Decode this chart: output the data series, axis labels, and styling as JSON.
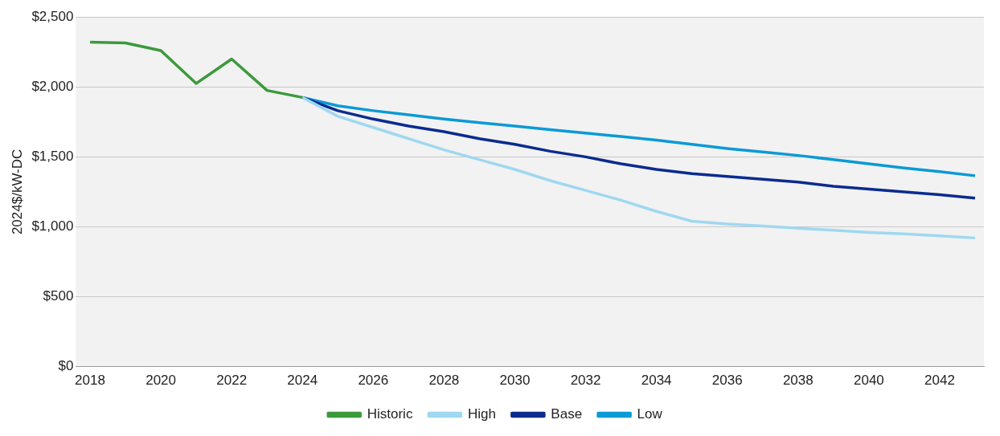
{
  "chart_data": {
    "type": "line",
    "ylabel": "2024$/kW-DC",
    "xlim": [
      2017.6,
      2043.25
    ],
    "xticks": [
      2018,
      2020,
      2022,
      2024,
      2026,
      2028,
      2030,
      2032,
      2034,
      2036,
      2038,
      2040,
      2042
    ],
    "ylim": [
      0,
      2500
    ],
    "yticks": [
      {
        "value": 0,
        "label": "$0"
      },
      {
        "value": 500,
        "label": "$500"
      },
      {
        "value": 1000,
        "label": "$1,000"
      },
      {
        "value": 1500,
        "label": "$1,500"
      },
      {
        "value": 2000,
        "label": "$2,000"
      },
      {
        "value": 2500,
        "label": "$2,500"
      }
    ],
    "grid": "y",
    "legend": "bottom",
    "series": [
      {
        "name": "Historic",
        "color": "#3b9a3b",
        "x": [
          2018,
          2019,
          2020,
          2021,
          2022,
          2023,
          2024
        ],
        "values": [
          2320,
          2315,
          2260,
          2025,
          2200,
          1975,
          1925
        ]
      },
      {
        "name": "High",
        "color": "#9fd8f0",
        "x": [
          2024,
          2025,
          2026,
          2027,
          2028,
          2029,
          2030,
          2031,
          2032,
          2033,
          2034,
          2035,
          2036,
          2037,
          2038,
          2039,
          2040,
          2041,
          2042,
          2043
        ],
        "values": [
          1925,
          1790,
          1710,
          1630,
          1550,
          1480,
          1410,
          1330,
          1260,
          1190,
          1110,
          1040,
          1020,
          1005,
          990,
          975,
          960,
          950,
          935,
          920
        ]
      },
      {
        "name": "Base",
        "color": "#0b2b8f",
        "x": [
          2024,
          2025,
          2026,
          2027,
          2028,
          2029,
          2030,
          2031,
          2032,
          2033,
          2034,
          2035,
          2036,
          2037,
          2038,
          2039,
          2040,
          2041,
          2042,
          2043
        ],
        "values": [
          1925,
          1830,
          1770,
          1720,
          1680,
          1630,
          1590,
          1540,
          1500,
          1450,
          1410,
          1380,
          1360,
          1340,
          1320,
          1290,
          1270,
          1250,
          1230,
          1205
        ]
      },
      {
        "name": "Low",
        "color": "#0a9ad6",
        "x": [
          2024,
          2025,
          2026,
          2027,
          2028,
          2029,
          2030,
          2031,
          2032,
          2033,
          2034,
          2035,
          2036,
          2037,
          2038,
          2039,
          2040,
          2041,
          2042,
          2043
        ],
        "values": [
          1925,
          1865,
          1830,
          1800,
          1770,
          1745,
          1720,
          1695,
          1670,
          1645,
          1620,
          1590,
          1560,
          1535,
          1510,
          1480,
          1450,
          1420,
          1395,
          1365
        ]
      }
    ]
  }
}
